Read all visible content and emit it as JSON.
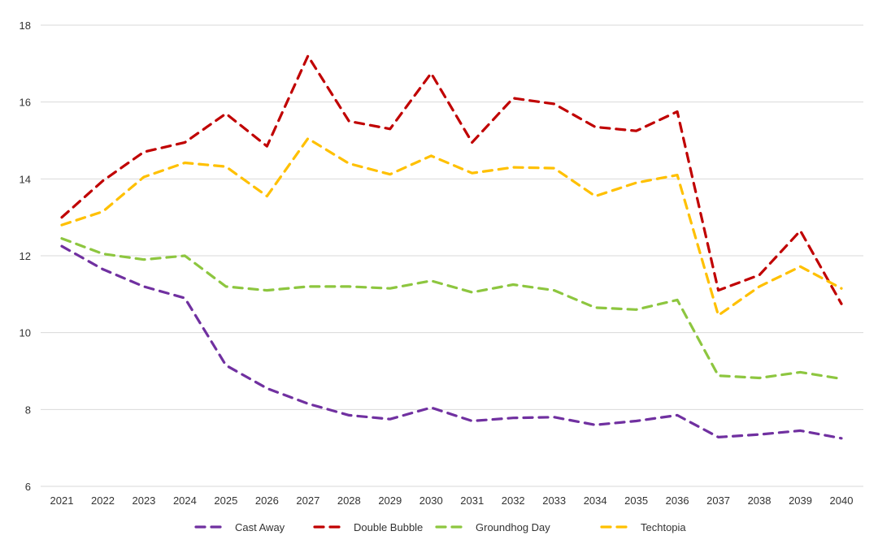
{
  "chart_data": {
    "type": "line",
    "title": "",
    "xlabel": "",
    "ylabel": "",
    "ylim": [
      6,
      18
    ],
    "yticks": [
      6,
      8,
      10,
      12,
      14,
      16,
      18
    ],
    "grid": "horizontal",
    "legend_position": "bottom",
    "categories": [
      "2021",
      "2022",
      "2023",
      "2024",
      "2025",
      "2026",
      "2027",
      "2028",
      "2029",
      "2030",
      "2031",
      "2032",
      "2033",
      "2034",
      "2035",
      "2036",
      "2037",
      "2038",
      "2039",
      "2040"
    ],
    "series": [
      {
        "name": "Cast Away",
        "color": "#7030a0",
        "values": [
          12.25,
          11.65,
          11.2,
          10.9,
          9.15,
          8.55,
          8.15,
          7.85,
          7.75,
          8.05,
          7.7,
          7.78,
          7.8,
          7.6,
          7.7,
          7.85,
          7.28,
          7.35,
          7.45,
          7.25
        ]
      },
      {
        "name": "Double Bubble",
        "color": "#c00000",
        "values": [
          13.0,
          13.95,
          14.7,
          14.95,
          15.7,
          14.85,
          17.2,
          15.5,
          15.3,
          16.75,
          14.95,
          16.1,
          15.95,
          15.35,
          15.25,
          15.75,
          11.1,
          11.5,
          12.65,
          10.75
        ]
      },
      {
        "name": "Groundhog Day",
        "color": "#8dc63f",
        "values": [
          12.45,
          12.05,
          11.9,
          12.0,
          11.2,
          11.1,
          11.2,
          11.2,
          11.15,
          11.35,
          11.05,
          11.25,
          11.1,
          10.65,
          10.6,
          10.85,
          8.88,
          8.82,
          8.97,
          8.8
        ]
      },
      {
        "name": "Techtopia",
        "color": "#ffc000",
        "values": [
          12.8,
          13.15,
          14.05,
          14.42,
          14.32,
          13.55,
          15.05,
          14.4,
          14.12,
          14.6,
          14.15,
          14.3,
          14.28,
          13.55,
          13.9,
          14.1,
          10.45,
          11.2,
          11.72,
          11.15
        ]
      }
    ]
  }
}
